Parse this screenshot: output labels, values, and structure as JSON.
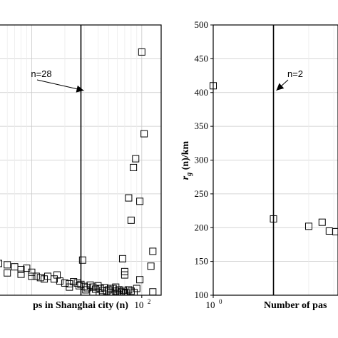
{
  "chart_data": [
    {
      "type": "scatter",
      "title": "",
      "xlabel": "ps in Shanghai city (n)",
      "ylabel": "",
      "xscale": "log",
      "xlim": [
        5,
        150
      ],
      "ylim": [
        100,
        500
      ],
      "grid": true,
      "x_tick_labels": [
        "10",
        "2"
      ],
      "vline_x": 28,
      "annotation": "n=28",
      "points": [
        [
          100,
          460
        ],
        [
          105,
          339
        ],
        [
          88,
          302
        ],
        [
          84,
          289
        ],
        [
          76,
          244
        ],
        [
          96,
          239
        ],
        [
          80,
          211
        ],
        [
          70,
          135
        ],
        [
          70,
          130
        ],
        [
          126,
          165
        ],
        [
          121,
          143
        ],
        [
          96,
          123
        ],
        [
          126,
          105
        ],
        [
          29,
          152
        ],
        [
          67,
          154
        ],
        [
          5,
          147
        ],
        [
          6,
          145
        ],
        [
          7,
          142
        ],
        [
          8,
          138
        ],
        [
          9,
          140
        ],
        [
          10,
          134
        ],
        [
          11,
          128
        ],
        [
          12,
          126
        ],
        [
          14,
          128
        ],
        [
          16,
          124
        ],
        [
          18,
          121
        ],
        [
          20,
          118
        ],
        [
          22,
          117
        ],
        [
          24,
          120
        ],
        [
          26,
          118
        ],
        [
          28,
          116
        ],
        [
          30,
          113
        ],
        [
          32,
          111
        ],
        [
          34,
          115
        ],
        [
          36,
          112
        ],
        [
          38,
          109
        ],
        [
          40,
          114
        ],
        [
          42,
          110
        ],
        [
          44,
          107
        ],
        [
          46,
          111
        ],
        [
          48,
          106
        ],
        [
          50,
          108
        ],
        [
          52,
          104
        ],
        [
          55,
          110
        ],
        [
          58,
          106
        ],
        [
          60,
          103
        ],
        [
          62,
          108
        ],
        [
          65,
          105
        ],
        [
          68,
          107
        ],
        [
          72,
          104
        ],
        [
          76,
          108
        ],
        [
          80,
          106
        ],
        [
          85,
          104
        ],
        [
          90,
          110
        ],
        [
          6,
          133
        ],
        [
          8,
          131
        ],
        [
          10,
          128
        ],
        [
          13,
          124
        ],
        [
          17,
          130
        ],
        [
          22,
          112
        ],
        [
          27,
          114
        ],
        [
          31,
          108
        ],
        [
          36,
          104
        ],
        [
          44,
          103
        ],
        [
          52,
          110
        ],
        [
          58,
          112
        ],
        [
          63,
          101
        ],
        [
          69,
          103
        ]
      ]
    },
    {
      "type": "scatter",
      "title": "",
      "xlabel": "Number of pas",
      "ylabel": "r_g (n)/km",
      "xscale": "log",
      "xlim": [
        1,
        4.2
      ],
      "ylim": [
        100,
        500
      ],
      "grid": true,
      "x_tick_labels": [
        "10",
        "0"
      ],
      "y_ticks": [
        100,
        150,
        200,
        250,
        300,
        350,
        400,
        450,
        500
      ],
      "vline_x": 2,
      "annotation": "n=2",
      "points": [
        [
          1,
          410
        ],
        [
          2,
          213
        ],
        [
          3,
          202
        ],
        [
          3.5,
          208
        ],
        [
          3.8,
          195
        ],
        [
          4.1,
          194
        ]
      ]
    }
  ]
}
